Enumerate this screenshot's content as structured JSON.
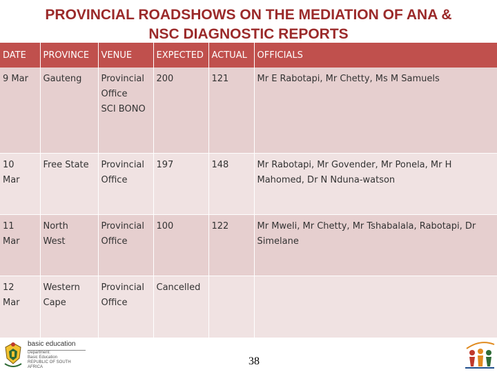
{
  "title": {
    "line1": "PROVINCIAL ROADSHOWS ON THE MEDIATION OF ANA &",
    "line2": "NSC DIAGNOSTIC REPORTS"
  },
  "table": {
    "headers": [
      "DATE",
      "PROVINCE",
      "VENUE",
      "EXPECTED",
      "ACTUAL",
      "OFFICIALS"
    ],
    "rows": [
      {
        "date": [
          "9 Mar"
        ],
        "province": [
          "Gauteng"
        ],
        "venue": [
          "Provincial",
          "Office",
          "SCI BONO"
        ],
        "expected": "200",
        "actual": "121",
        "officials": [
          "Mr E Rabotapi, Mr Chetty, Ms M Samuels"
        ]
      },
      {
        "date": [
          "10",
          "Mar"
        ],
        "province": [
          "Free State"
        ],
        "venue": [
          "Provincial",
          "Office"
        ],
        "expected": "197",
        "actual": "148",
        "officials": [
          "Mr Rabotapi, Mr Govender, Mr Ponela, Mr H",
          "Mahomed, Dr N Nduna-watson"
        ]
      },
      {
        "date": [
          "11",
          "Mar"
        ],
        "province": [
          "North",
          "West"
        ],
        "venue": [
          "Provincial",
          "Office"
        ],
        "expected": "100",
        "actual": "122",
        "officials": [
          "Mr Mweli, Mr Chetty, Mr Tshabalala, Rabotapi, Dr",
          "Simelane"
        ]
      },
      {
        "date": [
          "12",
          "Mar"
        ],
        "province": [
          "Western",
          "Cape"
        ],
        "venue": [
          "Provincial",
          "Office"
        ],
        "expected": "Cancelled",
        "actual": "",
        "officials": [
          ""
        ]
      }
    ]
  },
  "footer": {
    "logo_main": "basic education",
    "logo_sub1": "Department:",
    "logo_sub2": "Basic Education",
    "logo_sub3": "REPUBLIC OF SOUTH AFRICA",
    "page_number": "38"
  },
  "colors": {
    "title": "#9b2a2a",
    "header_bg": "#c0504d",
    "row_dark": "#e6cfcf",
    "row_light": "#f0e2e2"
  },
  "icons": {
    "left_logo": "coat-of-arms-icon",
    "right_logo": "education-figures-icon"
  }
}
